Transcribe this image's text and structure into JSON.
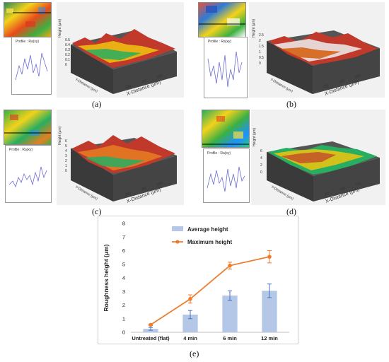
{
  "panels": [
    {
      "label": "(a)",
      "profile_title": "Profile : Ra(xy)",
      "z_axis_label": "Height (μm)",
      "z_ticks": [
        "0.5",
        "0.4",
        "0.3",
        "0.2",
        "0.1",
        "0"
      ],
      "x_axis_label": "X-Distance (μm)",
      "x_ticks": [
        "350",
        "250",
        "150"
      ],
      "y_axis_label": "Y-Distance (μm)"
    },
    {
      "label": "(b)",
      "profile_title": "Profile : Ra(xy)",
      "z_axis_label": "Height (μm)",
      "z_ticks": [
        "2.5",
        "2",
        "1.5",
        "1",
        "0.5",
        "0"
      ],
      "x_axis_label": "X-Distance (μm)",
      "x_ticks": [
        "350",
        "250",
        "150"
      ],
      "y_axis_label": "Y-Distance (μm)"
    },
    {
      "label": "(c)",
      "profile_title": "Profile : Ra(xy)",
      "z_axis_label": "Height (μm)",
      "z_ticks": [
        "6",
        "5",
        "4",
        "3",
        "2",
        "1",
        "0"
      ],
      "x_axis_label": "X-Distance (μm)",
      "x_ticks": [
        "350",
        "250",
        "150"
      ],
      "y_axis_label": "Y-Distance (μm)"
    },
    {
      "label": "(d)",
      "profile_title": "Profile : Ra(xy)",
      "z_axis_label": "Height (μm)",
      "z_ticks": [
        "6",
        "4",
        "2",
        "0"
      ],
      "x_axis_label": "X-Distance (μm)",
      "x_ticks": [
        "350",
        "250",
        "150"
      ],
      "y_axis_label": "Y-Distance (μm)"
    }
  ],
  "chart_label": "(e)",
  "chart_data": {
    "type": "bar",
    "categories": [
      "Untreated (flat)",
      "4 min",
      "6 min",
      "12 min"
    ],
    "series": [
      {
        "name": "Average height",
        "type": "bar",
        "values": [
          0.25,
          1.3,
          2.7,
          3.05
        ],
        "errors": [
          0.1,
          0.3,
          0.35,
          0.5
        ],
        "color": "#b4c7e7"
      },
      {
        "name": "Maximum height",
        "type": "line",
        "values": [
          0.55,
          2.45,
          4.9,
          5.55
        ],
        "errors": [
          0.05,
          0.3,
          0.25,
          0.45
        ],
        "color": "#ed7d31"
      }
    ],
    "xlabel": "",
    "ylabel": "Roughness height (μm)",
    "ylim": [
      0,
      8
    ],
    "yticks": [
      "0",
      "1",
      "2",
      "3",
      "4",
      "5",
      "6",
      "7",
      "8"
    ],
    "legend": "top-left",
    "grid": false
  }
}
